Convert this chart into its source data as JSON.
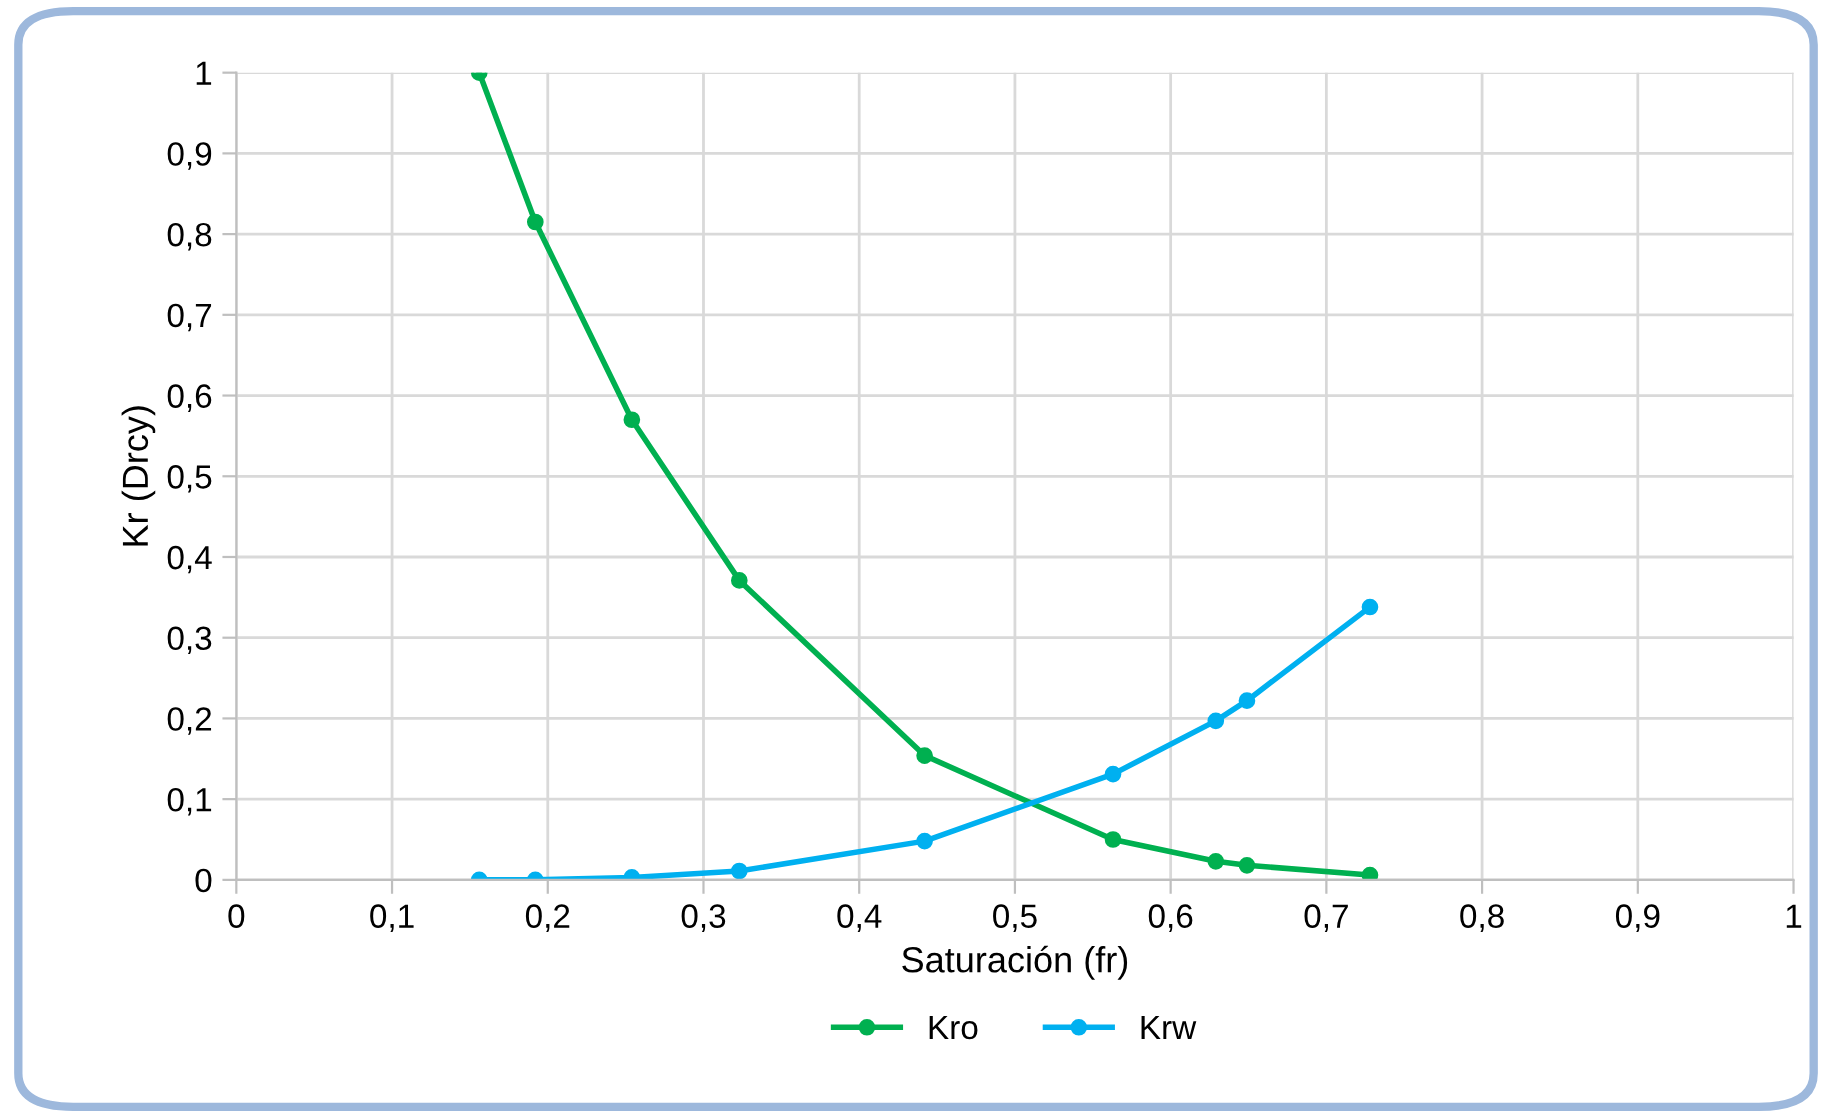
{
  "chart_data": {
    "type": "line",
    "xlabel": "Saturación (fr)",
    "ylabel": "Kr (Drcy)",
    "x": [
      0.156,
      0.192,
      0.254,
      0.323,
      0.442,
      0.563,
      0.629,
      0.649,
      0.728
    ],
    "series": [
      {
        "name": "Kro",
        "color": "#00b050",
        "values": [
          1.0,
          0.815,
          0.57,
          0.371,
          0.154,
          0.05,
          0.023,
          0.018,
          0.006
        ]
      },
      {
        "name": "Krw",
        "color": "#00b0f0",
        "values": [
          0,
          0,
          0.003,
          0.011,
          0.048,
          0.131,
          0.197,
          0.222,
          0.338
        ]
      }
    ],
    "xlim": [
      0,
      1
    ],
    "xticks": [
      {
        "value": 0,
        "label": "0"
      },
      {
        "value": 0.1,
        "label": "0,1"
      },
      {
        "value": 0.2,
        "label": "0,2"
      },
      {
        "value": 0.3,
        "label": "0,3"
      },
      {
        "value": 0.4,
        "label": "0,4"
      },
      {
        "value": 0.5,
        "label": "0,5"
      },
      {
        "value": 0.6,
        "label": "0,6"
      },
      {
        "value": 0.7,
        "label": "0,7"
      },
      {
        "value": 0.8,
        "label": "0,8"
      },
      {
        "value": 0.9,
        "label": "0,9"
      },
      {
        "value": 1,
        "label": "1"
      }
    ],
    "ylim": [
      0,
      1
    ],
    "yticks": [
      {
        "value": 0,
        "label": "0"
      },
      {
        "value": 0.1,
        "label": "0,1"
      },
      {
        "value": 0.2,
        "label": "0,2"
      },
      {
        "value": 0.3,
        "label": "0,3"
      },
      {
        "value": 0.4,
        "label": "0,4"
      },
      {
        "value": 0.5,
        "label": "0,5"
      },
      {
        "value": 0.6,
        "label": "0,6"
      },
      {
        "value": 0.7,
        "label": "0,7"
      },
      {
        "value": 0.8,
        "label": "0,8"
      },
      {
        "value": 0.9,
        "label": "0,9"
      },
      {
        "value": 1,
        "label": "1"
      }
    ],
    "grid": true,
    "legend": "bottom",
    "marker": "circle",
    "line_style": "solid"
  }
}
